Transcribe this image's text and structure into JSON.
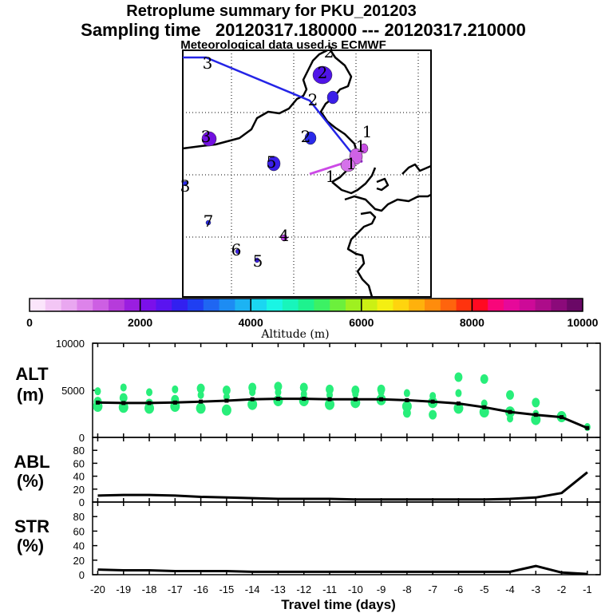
{
  "header": {
    "title": "Retroplume summary for PKU_201203",
    "sampling": "Sampling time   20120317.180000 --- 20120317.210000",
    "met_note": "Meteorological data used is ECMWF"
  },
  "colorbar": {
    "label": "Altitude (m)",
    "ticks": [
      "0",
      "2000",
      "4000",
      "6000",
      "8000",
      "10000"
    ],
    "colors": [
      "#fbe5fb",
      "#f3c6f5",
      "#e9a7f0",
      "#dd83ea",
      "#cd5fe3",
      "#b63bdb",
      "#9a1ee0",
      "#7b10ea",
      "#5a14f0",
      "#3220f0",
      "#1f3ff2",
      "#1f66f2",
      "#1d8cf3",
      "#1cb3f3",
      "#1bd6f1",
      "#1af5e4",
      "#18f5bb",
      "#1ef28e",
      "#3cf164",
      "#6cf03c",
      "#9ff020",
      "#ccf014",
      "#f4ef12",
      "#ffd40e",
      "#ffb10c",
      "#ff8c0c",
      "#ff640d",
      "#ff330e",
      "#ff0a22",
      "#f8067a",
      "#e6099a",
      "#cd0a98",
      "#ad0c8a",
      "#8b0a7a",
      "#6a0866"
    ]
  },
  "map": {
    "labels": [
      {
        "text": "2",
        "kind": "altitude-cluster"
      },
      {
        "text": "2",
        "kind": "altitude-cluster"
      },
      {
        "text": "3",
        "kind": "altitude-cluster"
      },
      {
        "text": "2",
        "kind": "altitude-cluster"
      },
      {
        "text": "2",
        "kind": "altitude-cluster"
      },
      {
        "text": "3",
        "kind": "altitude-cluster"
      },
      {
        "text": "7",
        "kind": "altitude-cluster"
      },
      {
        "text": "6",
        "kind": "altitude-cluster"
      },
      {
        "text": "5",
        "kind": "altitude-cluster"
      },
      {
        "text": "4",
        "kind": "altitude-cluster"
      },
      {
        "text": "1",
        "kind": "altitude-cluster"
      },
      {
        "text": "1",
        "kind": "altitude-cluster"
      },
      {
        "text": "1",
        "kind": "altitude-cluster"
      },
      {
        "text": "1",
        "kind": "altitude-cluster"
      },
      {
        "text": "5",
        "kind": "altitude-cluster"
      },
      {
        "text": "3",
        "kind": "altitude-cluster"
      }
    ]
  },
  "chart_data": [
    {
      "type": "scatter",
      "panel_label": "ALT\n(m)",
      "ylabel_line1": "ALT",
      "ylabel_line2": "(m)",
      "ylim": [
        0,
        10000
      ],
      "yticks": [
        "0",
        "5000",
        "10000"
      ],
      "x": [
        -20,
        -19,
        -18,
        -17,
        -16,
        -15,
        -14,
        -13,
        -12,
        -11,
        -10,
        -9,
        -8,
        -7,
        -6,
        -5,
        -4,
        -3,
        -2,
        -1
      ],
      "xlim": [
        -20.2,
        -0.5
      ],
      "series": [
        {
          "name": "mean altitude",
          "values": [
            3700,
            3650,
            3650,
            3700,
            3800,
            3900,
            4050,
            4100,
            4100,
            4050,
            4050,
            4050,
            3950,
            3800,
            3600,
            3200,
            2700,
            2400,
            2150,
            1000
          ]
        },
        {
          "name": "cluster points",
          "values": [
            [
              -20,
              3300
            ],
            [
              -20,
              4900
            ],
            [
              -20,
              3800
            ],
            [
              -19,
              3200
            ],
            [
              -19,
              5300
            ],
            [
              -19,
              4200
            ],
            [
              -18,
              3100
            ],
            [
              -18,
              4800
            ],
            [
              -18,
              3600
            ],
            [
              -17,
              3300
            ],
            [
              -17,
              5100
            ],
            [
              -17,
              4000
            ],
            [
              -16,
              3100
            ],
            [
              -16,
              4500
            ],
            [
              -16,
              5200
            ],
            [
              -15,
              2900
            ],
            [
              -15,
              4300
            ],
            [
              -15,
              5000
            ],
            [
              -14,
              3500
            ],
            [
              -14,
              4800
            ],
            [
              -14,
              5300
            ],
            [
              -13,
              3900
            ],
            [
              -13,
              4800
            ],
            [
              -13,
              5400
            ],
            [
              -12,
              3900
            ],
            [
              -12,
              4600
            ],
            [
              -12,
              5300
            ],
            [
              -11,
              3500
            ],
            [
              -11,
              4500
            ],
            [
              -11,
              5100
            ],
            [
              -10,
              3700
            ],
            [
              -10,
              4600
            ],
            [
              -10,
              5000
            ],
            [
              -9,
              4000
            ],
            [
              -9,
              4800
            ],
            [
              -9,
              5100
            ],
            [
              -8,
              3300
            ],
            [
              -8,
              4700
            ],
            [
              -8,
              2600
            ],
            [
              -7,
              3700
            ],
            [
              -7,
              4400
            ],
            [
              -7,
              2400
            ],
            [
              -6,
              3100
            ],
            [
              -6,
              4700
            ],
            [
              -6,
              6400
            ],
            [
              -5,
              2700
            ],
            [
              -5,
              3600
            ],
            [
              -5,
              6200
            ],
            [
              -4,
              2700
            ],
            [
              -4,
              2000
            ],
            [
              -4,
              4500
            ],
            [
              -3,
              1900
            ],
            [
              -3,
              2500
            ],
            [
              -3,
              3700
            ],
            [
              -2,
              2200
            ],
            [
              -1,
              1100
            ]
          ]
        }
      ]
    },
    {
      "type": "line",
      "panel_label": "ABL\n(%)",
      "ylabel_line1": "ABL",
      "ylabel_line2": "(%)",
      "ylim": [
        0,
        100
      ],
      "yticks": [
        "0",
        "20",
        "40",
        "60",
        "80"
      ],
      "x": [
        -20,
        -19,
        -18,
        -17,
        -16,
        -15,
        -14,
        -13,
        -12,
        -11,
        -10,
        -9,
        -8,
        -7,
        -6,
        -5,
        -4,
        -3,
        -2,
        -1
      ],
      "xlim": [
        -20.2,
        -0.5
      ],
      "series": [
        {
          "name": "ABL fraction",
          "values": [
            10,
            11,
            11,
            10,
            8,
            7,
            6,
            5,
            5,
            5,
            4,
            4,
            4,
            4,
            4,
            4,
            5,
            7,
            14,
            46
          ]
        }
      ]
    },
    {
      "type": "line",
      "panel_label": "STR\n(%)",
      "ylabel_line1": "STR",
      "ylabel_line2": "(%)",
      "ylim": [
        0,
        100
      ],
      "yticks": [
        "0",
        "20",
        "40",
        "60",
        "80"
      ],
      "x": [
        -20,
        -19,
        -18,
        -17,
        -16,
        -15,
        -14,
        -13,
        -12,
        -11,
        -10,
        -9,
        -8,
        -7,
        -6,
        -5,
        -4,
        -3,
        -2,
        -1
      ],
      "xlim": [
        -20.2,
        -0.5
      ],
      "xlabel": "Travel time (days)",
      "xticks": [
        "-20",
        "-19",
        "-18",
        "-17",
        "-16",
        "-15",
        "-14",
        "-13",
        "-12",
        "-11",
        "-10",
        "-9",
        "-8",
        "-7",
        "-6",
        "-5",
        "-4",
        "-3",
        "-2",
        "-1"
      ],
      "series": [
        {
          "name": "STR fraction",
          "values": [
            7,
            6,
            6,
            5,
            5,
            5,
            4,
            4,
            4,
            4,
            4,
            4,
            4,
            4,
            4,
            4,
            4,
            12,
            3,
            1
          ]
        }
      ]
    }
  ]
}
